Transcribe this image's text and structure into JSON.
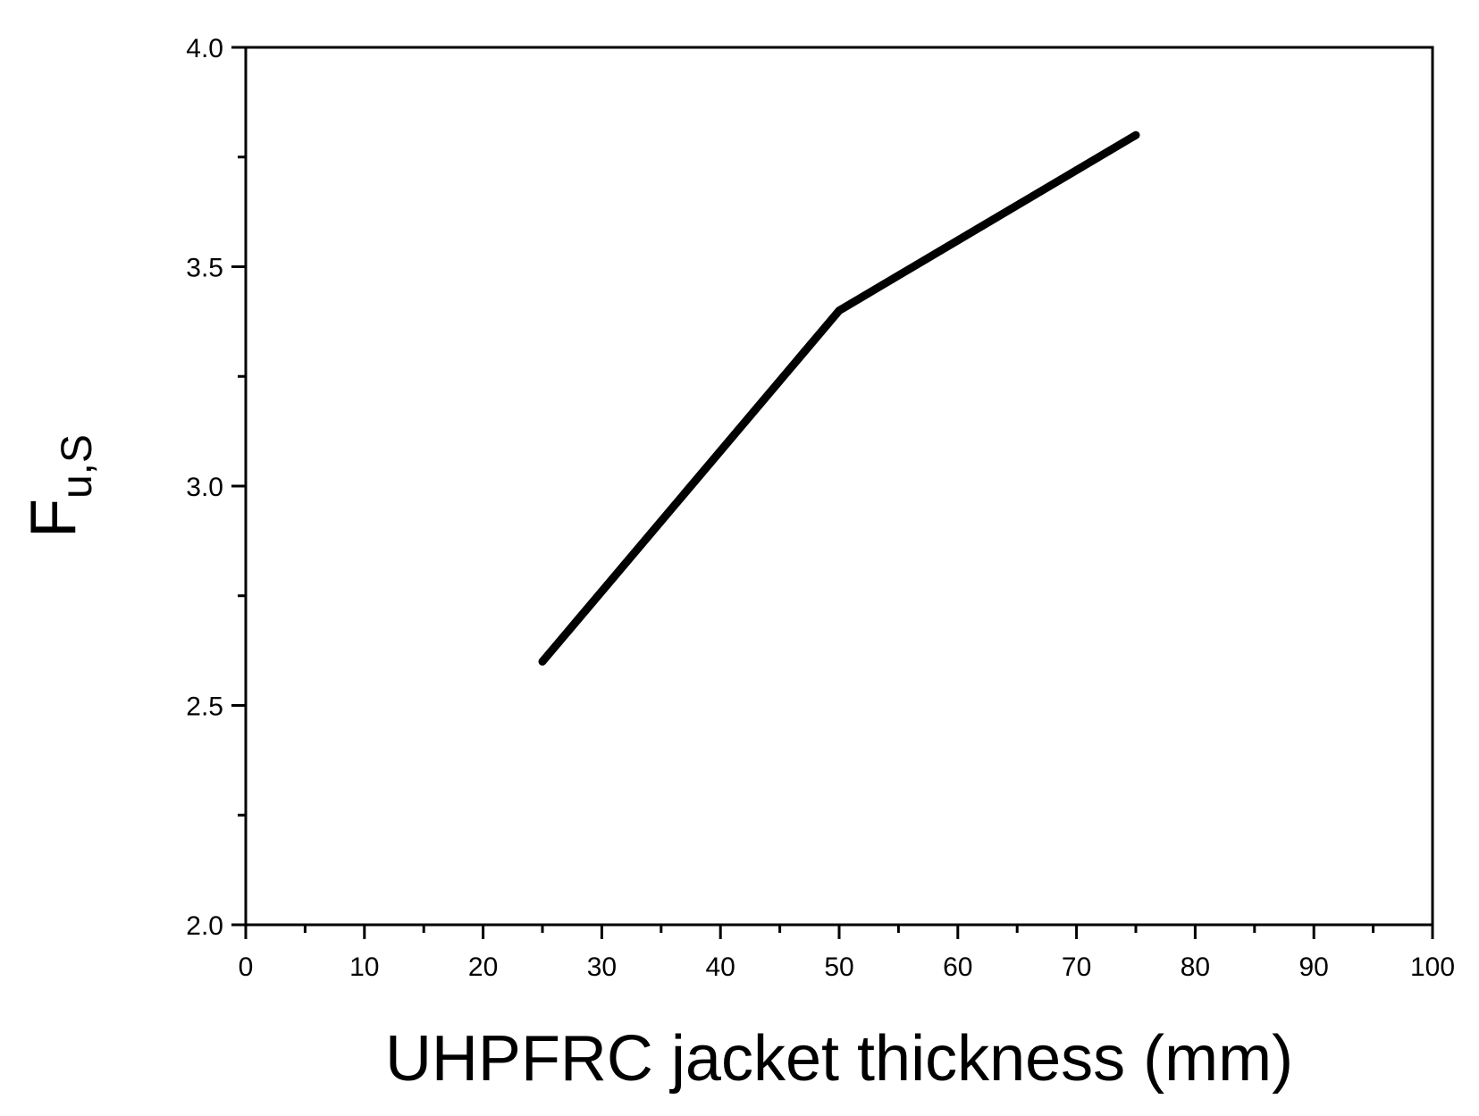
{
  "chart_data": {
    "type": "line",
    "xlabel": "UHPFRC jacket thickness (mm)",
    "ylabel": {
      "main": "F",
      "sub": "u,S"
    },
    "xlim": [
      0,
      100
    ],
    "ylim": [
      2.0,
      4.0
    ],
    "x_ticks": [
      "0",
      "10",
      "20",
      "30",
      "40",
      "50",
      "60",
      "70",
      "80",
      "90",
      "100"
    ],
    "y_ticks": [
      "2.0",
      "2.5",
      "3.0",
      "3.5",
      "4.0"
    ],
    "grid": false,
    "series": [
      {
        "x": [
          25,
          50,
          75
        ],
        "y": [
          2.6,
          3.4,
          3.8
        ],
        "color": "#000000"
      }
    ]
  }
}
